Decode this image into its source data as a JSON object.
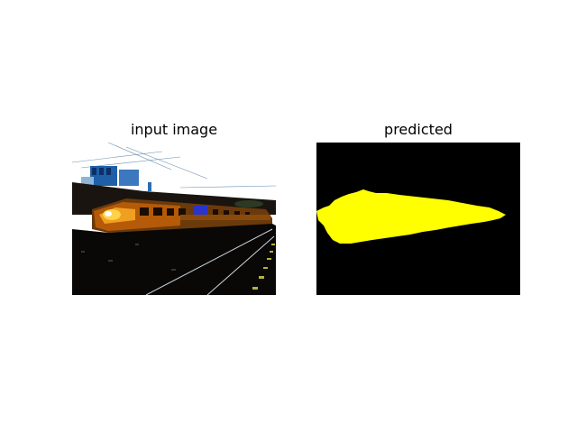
{
  "panels": [
    {
      "title": "input image"
    },
    {
      "title": "predicted"
    }
  ],
  "colors": {
    "background": "#ffffff",
    "mask_background": "#000000",
    "mask_foreground": "#ffff00"
  }
}
